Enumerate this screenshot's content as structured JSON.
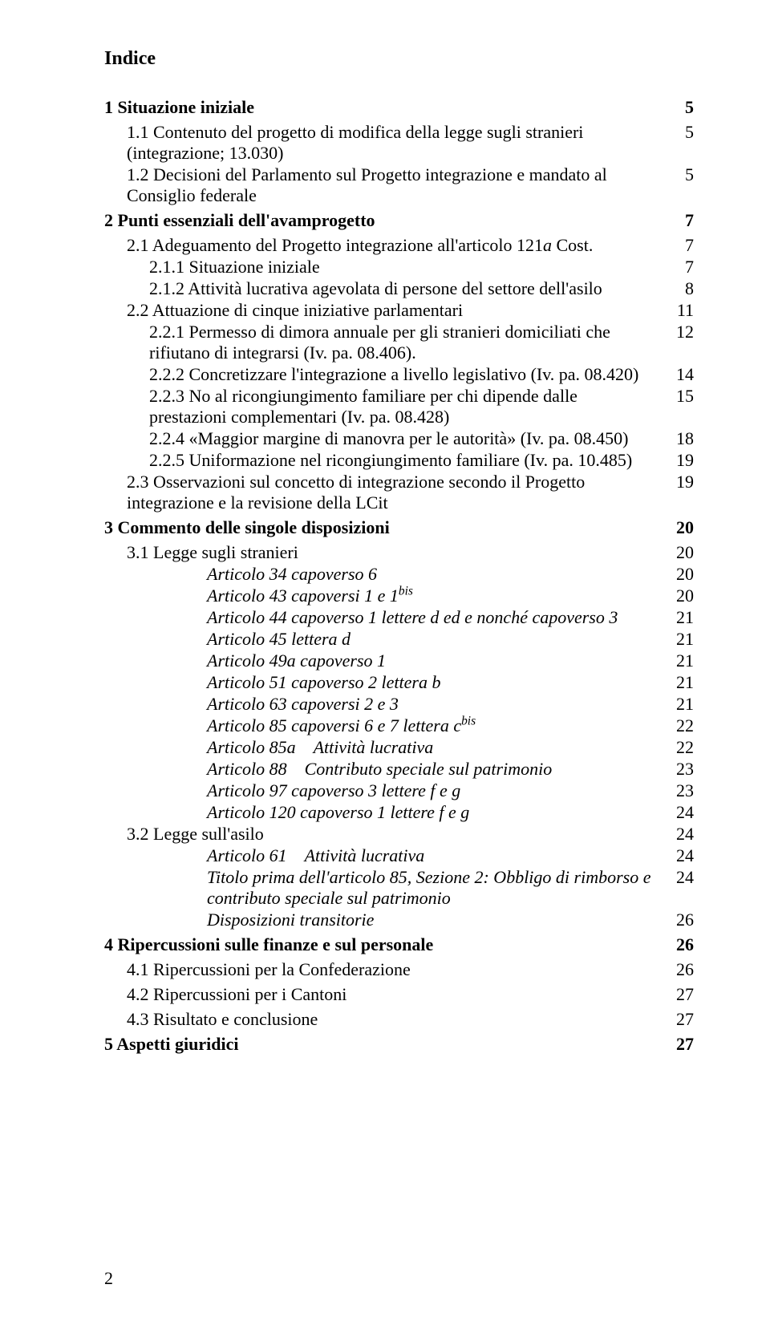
{
  "document": {
    "title": "Indice",
    "page_number": "2",
    "font_family": "Times New Roman",
    "text_color": "#000000",
    "background_color": "#ffffff",
    "title_fontsize": 24,
    "body_fontsize": 22,
    "entries": [
      {
        "text": "1 Situazione iniziale",
        "page": "5",
        "level": 0,
        "bold": true,
        "gap_after": "sm"
      },
      {
        "text": "1.1 Contenuto del progetto di modifica della legge sugli stranieri (integrazione; 13.030)",
        "page": "5",
        "level": 1
      },
      {
        "text": "1.2 Decisioni del Parlamento sul Progetto integrazione e mandato al Consiglio federale",
        "page": "5",
        "level": 1,
        "gap_after": "sm"
      },
      {
        "text": "2 Punti essenziali dell'avamprogetto",
        "page": "7",
        "level": 0,
        "bold": true,
        "gap_after": "sm"
      },
      {
        "text_html": "2.1 Adeguamento del Progetto integrazione all'articolo 121<span class='italic'>a</span> Cost.",
        "page": "7",
        "level": 1
      },
      {
        "text": "2.1.1 Situazione iniziale",
        "page": "7",
        "level": 2
      },
      {
        "text": "2.1.2 Attività lucrativa agevolata di persone del settore dell'asilo",
        "page": "8",
        "level": 2
      },
      {
        "text": "2.2 Attuazione di cinque iniziative parlamentari",
        "page": "11",
        "level": 1
      },
      {
        "text": "2.2.1 Permesso di dimora annuale per gli stranieri domiciliati che rifiutano di integrarsi (Iv. pa. 08.406).",
        "page": "12",
        "level": 2
      },
      {
        "text": "2.2.2 Concretizzare l'integrazione a livello legislativo (Iv. pa. 08.420)",
        "page": "14",
        "level": 2
      },
      {
        "text": "2.2.3 No al ricongiungimento familiare per chi dipende dalle prestazioni complementari (Iv. pa. 08.428)",
        "page": "15",
        "level": 2
      },
      {
        "text": "2.2.4 «Maggior margine di manovra per le autorità» (Iv. pa. 08.450)",
        "page": "18",
        "level": 2
      },
      {
        "text": "2.2.5 Uniformazione nel ricongiungimento familiare (Iv. pa. 10.485)",
        "page": "19",
        "level": 2
      },
      {
        "text": "2.3 Osservazioni sul concetto di integrazione secondo il Progetto integrazione e la revisione della LCit",
        "page": "19",
        "level": 1,
        "gap_after": "sm"
      },
      {
        "text": "3 Commento delle singole disposizioni",
        "page": "20",
        "level": 0,
        "bold": true,
        "gap_after": "sm"
      },
      {
        "text": "3.1 Legge sugli stranieri",
        "page": "20",
        "level": 1
      },
      {
        "text": "Articolo 34 capoverso 6",
        "page": "20",
        "level": 3,
        "italic": true
      },
      {
        "text_html": "Articolo 43 capoversi 1 e 1<sup>bis</sup>",
        "page": "20",
        "level": 3,
        "italic": true
      },
      {
        "text": "Articolo 44 capoverso 1 lettere d ed e nonché capoverso 3",
        "page": "21",
        "level": 3,
        "italic": true
      },
      {
        "text": "Articolo 45 lettera d",
        "page": "21",
        "level": 3,
        "italic": true
      },
      {
        "text": "Articolo 49a capoverso 1",
        "page": "21",
        "level": 3,
        "italic": true
      },
      {
        "text": "Articolo 51 capoverso 2 lettera b",
        "page": "21",
        "level": 3,
        "italic": true
      },
      {
        "text": "Articolo 63 capoversi 2 e 3",
        "page": "21",
        "level": 3,
        "italic": true
      },
      {
        "text_html": "Articolo 85 capoversi 6 e 7 lettera c<sup>bis</sup>",
        "page": "22",
        "level": 3,
        "italic": true
      },
      {
        "text": "Articolo 85a Attività lucrativa",
        "page": "22",
        "level": 3,
        "italic": true
      },
      {
        "text": "Articolo 88 Contributo speciale sul patrimonio",
        "page": "23",
        "level": 3,
        "italic": true
      },
      {
        "text": "Articolo 97 capoverso 3 lettere f e g",
        "page": "23",
        "level": 3,
        "italic": true
      },
      {
        "text": "Articolo 120 capoverso 1 lettere f e g",
        "page": "24",
        "level": 3,
        "italic": true
      },
      {
        "text": "3.2 Legge sull'asilo",
        "page": "24",
        "level": 1
      },
      {
        "text": "Articolo 61 Attività lucrativa",
        "page": "24",
        "level": 3,
        "italic": true
      },
      {
        "text": "Titolo prima dell'articolo 85, Sezione 2: Obbligo di rimborso e contributo speciale sul patrimonio",
        "page": "24",
        "level": 3,
        "italic": true
      },
      {
        "text": "Disposizioni transitorie",
        "page": "26",
        "level": 3,
        "italic": true,
        "gap_after": "sm"
      },
      {
        "text": "4 Ripercussioni sulle finanze e sul personale",
        "page": "26",
        "level": 0,
        "bold": true,
        "gap_after": "sm"
      },
      {
        "text": "4.1 Ripercussioni per la Confederazione",
        "page": "26",
        "level": 1,
        "gap_after": "sm"
      },
      {
        "text": "4.2 Ripercussioni per i Cantoni",
        "page": "27",
        "level": 1,
        "gap_after": "sm"
      },
      {
        "text": "4.3 Risultato e conclusione",
        "page": "27",
        "level": 1,
        "gap_after": "sm"
      },
      {
        "text": "5 Aspetti giuridici",
        "page": "27",
        "level": 0,
        "bold": true
      }
    ]
  }
}
